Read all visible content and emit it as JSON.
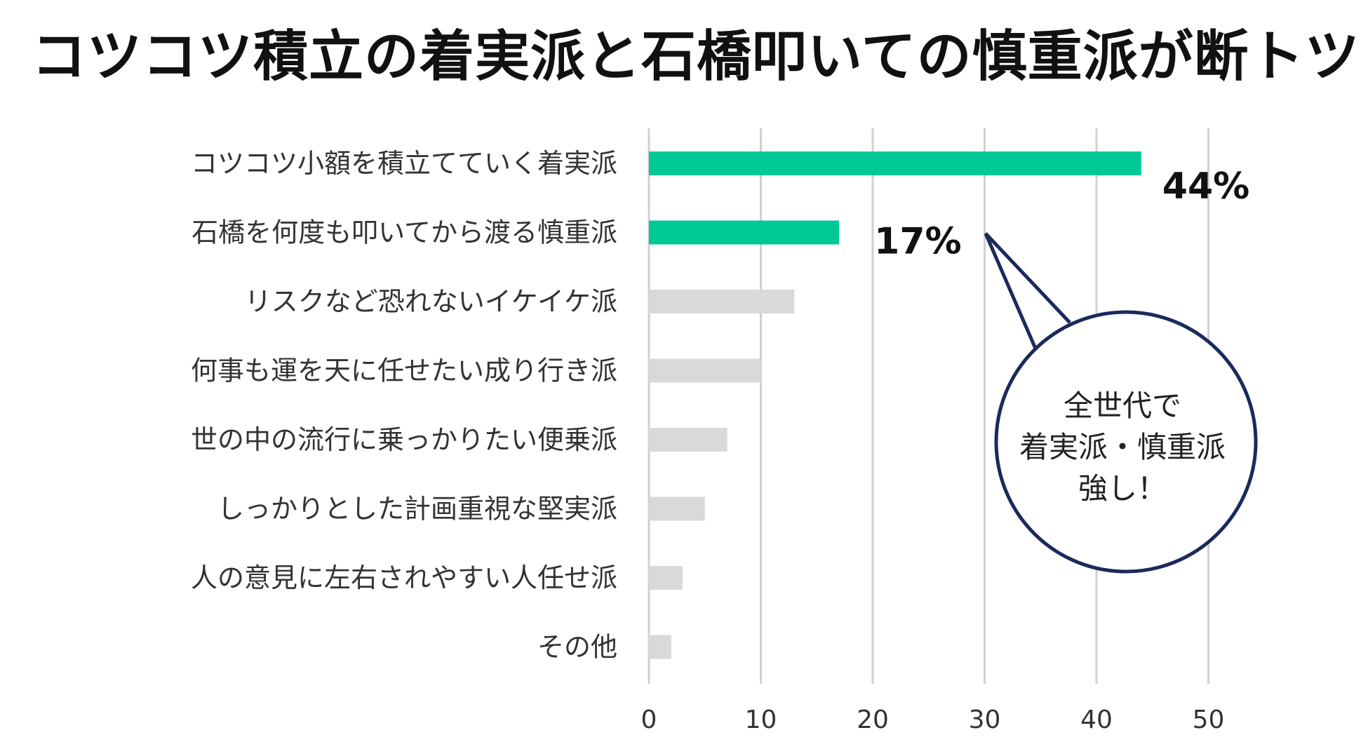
{
  "title": "コツコツ積立の着実派と石橋叩いての慎重派が断トツ",
  "chart_data": {
    "type": "bar",
    "orientation": "horizontal",
    "categories": [
      "コツコツ小額を積立てていく着実派",
      "石橋を何度も叩いてから渡る慎重派",
      "リスクなど恐れないイケイケ派",
      "何事も運を天に任せたい成り行き派",
      "世の中の流行に乗っかりたい便乗派",
      "しっかりとした計画重視な堅実派",
      "人の意見に左右されやすい人任せ派",
      "その他"
    ],
    "values": [
      44,
      17,
      13,
      10,
      7,
      5,
      3,
      2
    ],
    "data_labels": [
      "44%",
      "17%",
      "",
      "",
      "",
      "",
      "",
      ""
    ],
    "highlight_count": 2,
    "xlim": [
      0,
      50
    ],
    "xticks": [
      0,
      10,
      20,
      30,
      40,
      50
    ],
    "xlabel": "",
    "ylabel": "",
    "grid": "vertical",
    "colors": {
      "highlight": "#00c896",
      "other": "#d9d9d9",
      "grid": "#d0d0d0",
      "callout_border": "#1b2a5c"
    }
  },
  "callout": {
    "lines": [
      "全世代で",
      "着実派・慎重派",
      "強し！"
    ]
  }
}
